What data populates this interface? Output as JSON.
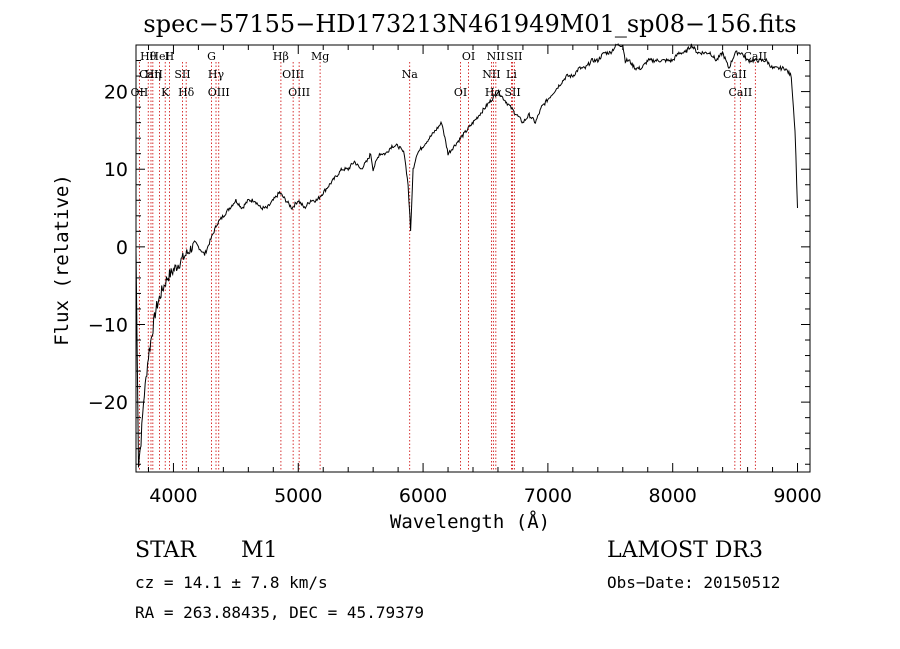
{
  "chart_data": {
    "type": "line",
    "title": "spec−57155−HD173213N461949M01_sp08−156.fits",
    "xlabel": "Wavelength (Å)",
    "ylabel": "Flux (relative)",
    "xlim": [
      3700,
      9100
    ],
    "ylim": [
      -29,
      26
    ],
    "x_ticks": [
      4000,
      5000,
      6000,
      7000,
      8000,
      9000
    ],
    "y_ticks": [
      -20,
      -10,
      0,
      10,
      20
    ],
    "grid": false,
    "line_color": "#000000",
    "marker_color": "#cc0000",
    "series": [
      {
        "x": [
          3700,
          3720,
          3740,
          3760,
          3780,
          3800,
          3830,
          3860,
          3900,
          3950,
          4000,
          4050,
          4100,
          4150,
          4200,
          4250,
          4300,
          4350,
          4400,
          4450,
          4500,
          4550,
          4600,
          4650,
          4700,
          4750,
          4800,
          4850,
          4900,
          4950,
          5000,
          5050,
          5100,
          5150,
          5200,
          5250,
          5300,
          5350,
          5400,
          5450,
          5500,
          5550,
          5580,
          5600,
          5650,
          5700,
          5750,
          5800,
          5850,
          5880,
          5900,
          5920,
          5950,
          6000,
          6050,
          6100,
          6150,
          6200,
          6250,
          6300,
          6350,
          6400,
          6450,
          6500,
          6550,
          6600,
          6650,
          6700,
          6750,
          6800,
          6850,
          6900,
          6950,
          7000,
          7050,
          7100,
          7150,
          7200,
          7250,
          7300,
          7350,
          7400,
          7450,
          7500,
          7550,
          7600,
          7620,
          7650,
          7700,
          7750,
          7800,
          7850,
          7900,
          7950,
          8000,
          8050,
          8100,
          8150,
          8200,
          8250,
          8300,
          8350,
          8400,
          8450,
          8500,
          8550,
          8600,
          8650,
          8700,
          8750,
          8800,
          8850,
          8900,
          8950,
          8980,
          9000
        ],
        "y": [
          0,
          -28,
          -25,
          -20,
          -17,
          -14,
          -11,
          -8,
          -6,
          -4,
          -3,
          -2,
          -1,
          0,
          0,
          -1,
          1,
          3,
          4,
          5,
          6,
          5,
          6,
          6,
          5,
          5,
          6,
          7,
          6,
          5,
          6,
          5,
          6,
          6,
          7,
          8,
          9,
          10,
          10,
          11,
          10,
          11,
          12,
          10,
          12,
          12,
          13,
          13,
          12,
          8,
          2,
          10,
          12,
          13,
          14,
          15,
          16,
          12,
          13,
          14,
          15,
          16,
          17,
          18,
          19,
          20,
          19,
          18,
          17,
          16,
          17,
          16,
          18,
          19,
          20,
          21,
          22,
          22,
          23,
          23,
          24,
          24,
          25,
          25,
          26,
          26,
          24,
          24,
          23,
          23,
          24,
          24,
          24,
          24,
          24,
          25,
          25,
          26,
          25,
          25,
          25,
          24,
          25,
          23,
          25,
          25,
          24,
          24,
          24,
          24,
          23,
          23,
          23,
          22,
          15,
          5
        ]
      }
    ],
    "lines": [
      {
        "label": "Hθ",
        "x": 3798
      },
      {
        "label": "CaII",
        "x": 3820
      },
      {
        "label": "OII",
        "x": 3727
      },
      {
        "label": "HeI",
        "x": 3889
      },
      {
        "label": "Hη",
        "x": 3835
      },
      {
        "label": "K",
        "x": 3934
      },
      {
        "label": "H",
        "x": 3968
      },
      {
        "label": "SII",
        "x": 4072
      },
      {
        "label": "Hδ",
        "x": 4102
      },
      {
        "label": "G",
        "x": 4305
      },
      {
        "label": "Hγ",
        "x": 4341
      },
      {
        "label": "OIII",
        "x": 4363
      },
      {
        "label": "Hβ",
        "x": 4861
      },
      {
        "label": "OIII",
        "x": 4959
      },
      {
        "label": "OIII",
        "x": 5007
      },
      {
        "label": "Mg",
        "x": 5175
      },
      {
        "label": "Na",
        "x": 5893
      },
      {
        "label": "OI",
        "x": 6300
      },
      {
        "label": "OI",
        "x": 6364
      },
      {
        "label": "NII",
        "x": 6548
      },
      {
        "label": "Hα",
        "x": 6563
      },
      {
        "label": "NII",
        "x": 6583
      },
      {
        "label": "Li",
        "x": 6708
      },
      {
        "label": "SII",
        "x": 6717
      },
      {
        "label": "SII",
        "x": 6731
      },
      {
        "label": "CaII",
        "x": 8498
      },
      {
        "label": "CaII",
        "x": 8542
      },
      {
        "label": "CaII",
        "x": 8662
      }
    ]
  },
  "info": {
    "object_class": "STAR",
    "subclass": "M1",
    "survey": "LAMOST DR3",
    "redshift": "cz = 14.1 ± 7.8 km/s",
    "obs_date": "Obs−Date: 20150512",
    "coords": "RA = 263.88435, DEC =  45.79379"
  }
}
